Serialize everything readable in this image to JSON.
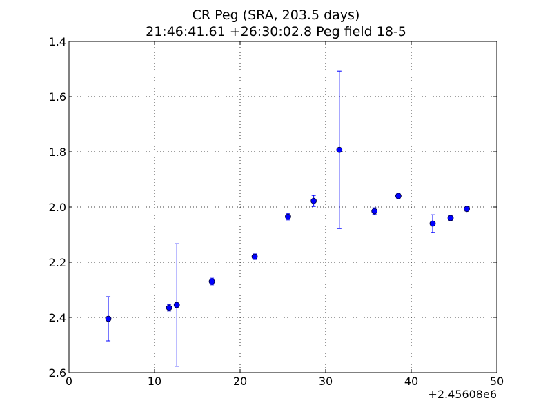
{
  "chart_data": {
    "type": "scatter",
    "title": "CR Peg (SRA, 203.5 days)",
    "subtitle": "21:46:41.61 +26:30:02.8 Peg field 18-5",
    "xlabel": "",
    "ylabel": "",
    "x_offset_label": "+2.45608e6",
    "xlim": [
      0,
      50
    ],
    "ylim": [
      2.6,
      1.4
    ],
    "y_inverted": true,
    "grid": true,
    "x_ticks": [
      "0",
      "10",
      "20",
      "30",
      "40",
      "50"
    ],
    "y_ticks": [
      "1.4",
      "1.6",
      "1.8",
      "2.0",
      "2.2",
      "2.4",
      "2.6"
    ],
    "marker_color": "#0000ff",
    "series": [
      {
        "points": [
          {
            "x": 4.6,
            "y": 2.405,
            "err": 0.08
          },
          {
            "x": 11.7,
            "y": 2.365,
            "err": 0.012
          },
          {
            "x": 12.6,
            "y": 2.355,
            "err": 0.222
          },
          {
            "x": 16.7,
            "y": 2.27,
            "err": 0.012
          },
          {
            "x": 21.7,
            "y": 2.18,
            "err": 0.01
          },
          {
            "x": 25.6,
            "y": 2.035,
            "err": 0.012
          },
          {
            "x": 28.6,
            "y": 1.978,
            "err": 0.02
          },
          {
            "x": 31.6,
            "y": 1.793,
            "err": 0.285
          },
          {
            "x": 35.7,
            "y": 2.015,
            "err": 0.012
          },
          {
            "x": 38.5,
            "y": 1.96,
            "err": 0.01
          },
          {
            "x": 42.5,
            "y": 2.06,
            "err": 0.032
          },
          {
            "x": 44.6,
            "y": 2.04,
            "err": 0.008
          },
          {
            "x": 46.5,
            "y": 2.007,
            "err": 0.008
          }
        ]
      }
    ]
  }
}
